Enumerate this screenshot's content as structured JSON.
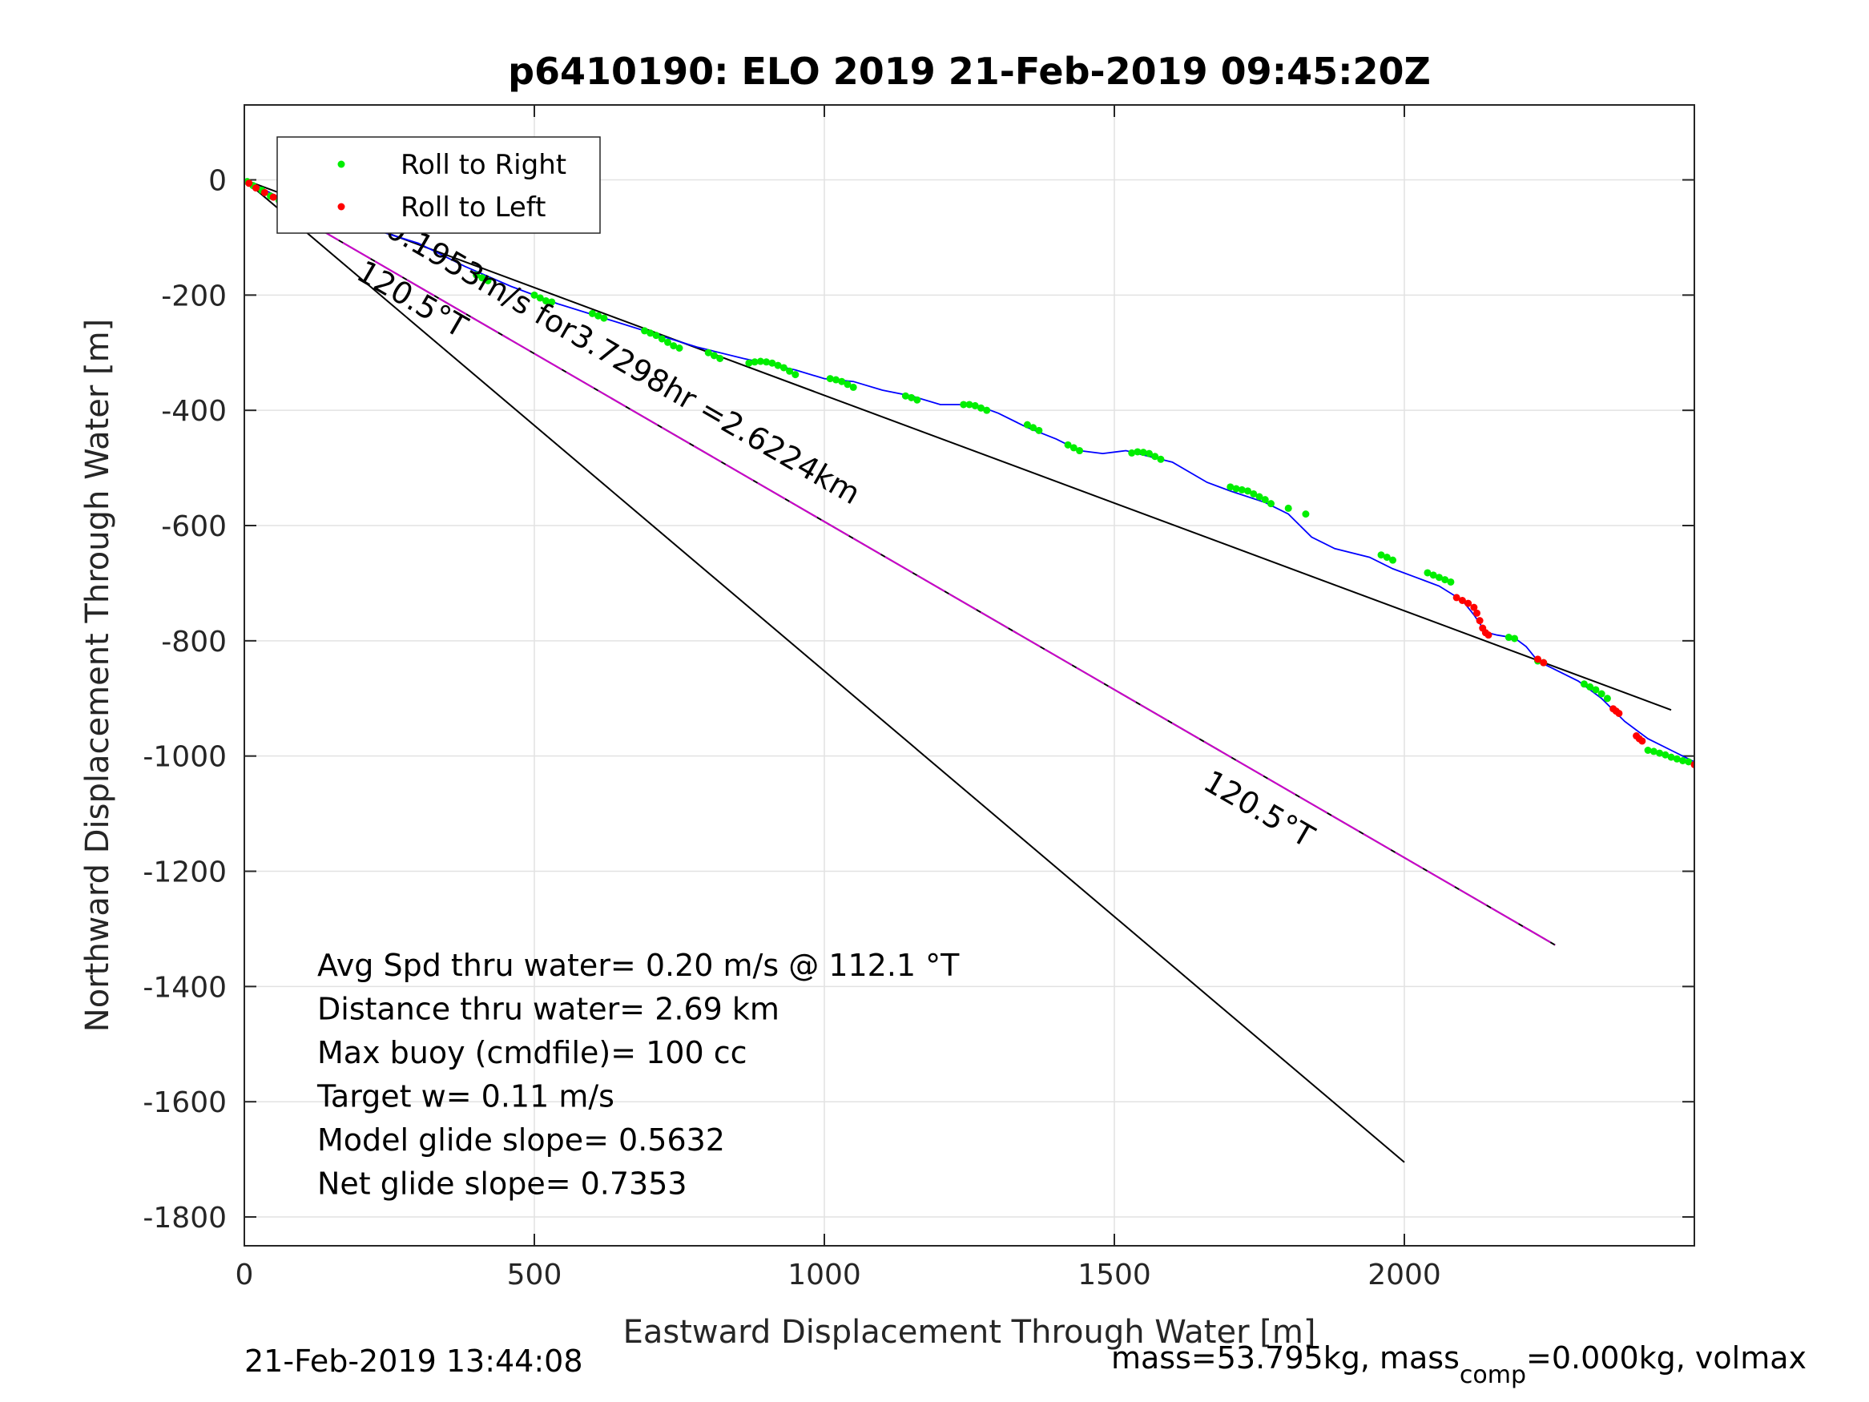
{
  "chart_data": {
    "type": "scatter",
    "title": "p6410190: ELO 2019 21-Feb-2019 09:45:20Z",
    "xlabel": "Eastward Displacement Through Water [m]",
    "ylabel": "Northward Displacement Through Water [m]",
    "xlim": [
      0,
      2500
    ],
    "ylim": [
      -1850,
      130
    ],
    "xticks": [
      0,
      500,
      1000,
      1500,
      2000
    ],
    "xtick_labels": [
      "0",
      "500",
      "1000",
      "1500",
      "2000"
    ],
    "yticks": [
      0,
      -200,
      -400,
      -600,
      -800,
      -1000,
      -1200,
      -1400,
      -1600,
      -1800
    ],
    "ytick_labels": [
      "0",
      "-200",
      "-400",
      "-600",
      "-800",
      "-1000",
      "-1200",
      "-1400",
      "-1600",
      "-1800"
    ],
    "grid": true,
    "legend_position": "top-left",
    "legend": [
      "Roll to Right",
      "Roll to Left"
    ],
    "colors": {
      "roll_right": "#00ee00",
      "roll_left": "#ff0000",
      "track": "#0000ff",
      "reference_lines": "#000000",
      "current_line": "#cc00cc",
      "grid": "#e2e2e2"
    },
    "track": {
      "x": [
        0,
        30,
        60,
        95,
        120,
        160,
        220,
        300,
        380,
        460,
        540,
        620,
        700,
        780,
        860,
        950,
        1000,
        1050,
        1100,
        1150,
        1200,
        1260,
        1300,
        1350,
        1400,
        1440,
        1480,
        1520,
        1560,
        1600,
        1660,
        1700,
        1760,
        1800,
        1840,
        1880,
        1940,
        1980,
        2020,
        2060,
        2100,
        2120,
        2140,
        2160,
        2190,
        2210,
        2230,
        2260,
        2300,
        2340,
        2380,
        2420,
        2460,
        2500
      ],
      "y": [
        0,
        -15,
        -30,
        -45,
        -42,
        -55,
        -85,
        -110,
        -150,
        -185,
        -215,
        -240,
        -265,
        -290,
        -310,
        -330,
        -345,
        -350,
        -365,
        -375,
        -390,
        -390,
        -405,
        -430,
        -450,
        -470,
        -475,
        -470,
        -480,
        -490,
        -525,
        -540,
        -560,
        -580,
        -620,
        -640,
        -655,
        -675,
        -690,
        -705,
        -730,
        -755,
        -785,
        -790,
        -795,
        -810,
        -835,
        -850,
        -870,
        -900,
        -940,
        -970,
        -990,
        -1010
      ]
    },
    "roll_right_points": {
      "x": [
        5,
        15,
        30,
        45,
        60,
        75,
        90,
        400,
        410,
        420,
        500,
        510,
        520,
        530,
        600,
        610,
        620,
        690,
        700,
        710,
        720,
        730,
        740,
        750,
        800,
        810,
        820,
        870,
        880,
        890,
        900,
        910,
        920,
        930,
        940,
        950,
        1010,
        1020,
        1030,
        1040,
        1050,
        1140,
        1150,
        1160,
        1240,
        1250,
        1260,
        1270,
        1280,
        1350,
        1360,
        1370,
        1420,
        1430,
        1440,
        1530,
        1540,
        1550,
        1560,
        1570,
        1580,
        1700,
        1710,
        1720,
        1730,
        1740,
        1750,
        1760,
        1770,
        1800,
        1830,
        1960,
        1970,
        1980,
        2040,
        2050,
        2060,
        2070,
        2080,
        2180,
        2190,
        2230,
        2240,
        2310,
        2320,
        2330,
        2340,
        2350,
        2420,
        2430,
        2440,
        2450,
        2460,
        2470,
        2480,
        2490
      ],
      "y": [
        -3,
        -10,
        -18,
        -28,
        -36,
        -42,
        -48,
        -165,
        -170,
        -175,
        -200,
        -205,
        -210,
        -212,
        -232,
        -236,
        -240,
        -262,
        -266,
        -270,
        -276,
        -282,
        -288,
        -292,
        -300,
        -305,
        -310,
        -318,
        -316,
        -315,
        -316,
        -318,
        -322,
        -326,
        -332,
        -338,
        -345,
        -347,
        -350,
        -355,
        -360,
        -375,
        -378,
        -382,
        -390,
        -390,
        -392,
        -396,
        -400,
        -425,
        -430,
        -435,
        -460,
        -465,
        -470,
        -474,
        -472,
        -473,
        -475,
        -480,
        -485,
        -533,
        -536,
        -538,
        -540,
        -545,
        -550,
        -555,
        -562,
        -570,
        -580,
        -651,
        -655,
        -660,
        -682,
        -686,
        -690,
        -694,
        -698,
        -794,
        -796,
        -835,
        -838,
        -875,
        -880,
        -885,
        -892,
        -900,
        -990,
        -992,
        -995,
        -998,
        -1002,
        -1005,
        -1008,
        -1010
      ]
    },
    "roll_left_points": {
      "x": [
        8,
        20,
        35,
        50,
        100,
        110,
        120,
        130,
        2090,
        2100,
        2110,
        2120,
        2125,
        2130,
        2135,
        2140,
        2145,
        2230,
        2240,
        2360,
        2365,
        2370,
        2400,
        2405,
        2410,
        2500
      ],
      "y": [
        -6,
        -14,
        -22,
        -30,
        -40,
        -42,
        -44,
        -48,
        -725,
        -730,
        -735,
        -742,
        -752,
        -765,
        -778,
        -786,
        -790,
        -832,
        -838,
        -918,
        -922,
        -926,
        -965,
        -970,
        -974,
        -1015
      ]
    },
    "reference_lines": [
      {
        "x": [
          0,
          2460
        ],
        "y": [
          0,
          -920
        ]
      },
      {
        "x": [
          0,
          2000
        ],
        "y": [
          0,
          -1705
        ]
      },
      {
        "x": [
          60,
          2260
        ],
        "y": [
          -45,
          -1328
        ]
      }
    ],
    "annotations": [
      {
        "text": "0.1953m/s for3.7298hr =2.6224km",
        "x": 240,
        "y": -95,
        "angle": 30
      },
      {
        "text": "120.5°T",
        "x": 190,
        "y": -170,
        "angle": 30
      },
      {
        "text": "120.5°T",
        "x": 1650,
        "y": -1055,
        "angle": 30
      }
    ],
    "info_lines": [
      "Avg Spd thru water=  0.20 m/s @ 112.1 °T",
      "Distance thru water=  2.69 km",
      "Max buoy (cmdfile)= 100 cc",
      "Target w= 0.11 m/s",
      "Model glide slope= 0.5632",
      "Net glide slope= 0.7353"
    ]
  },
  "footer": {
    "timestamp": "21-Feb-2019 13:44:08",
    "mass_text_pre": "mass=53.795kg, mass",
    "mass_sub": "comp",
    "mass_text_post": "=0.000kg, volmax"
  }
}
